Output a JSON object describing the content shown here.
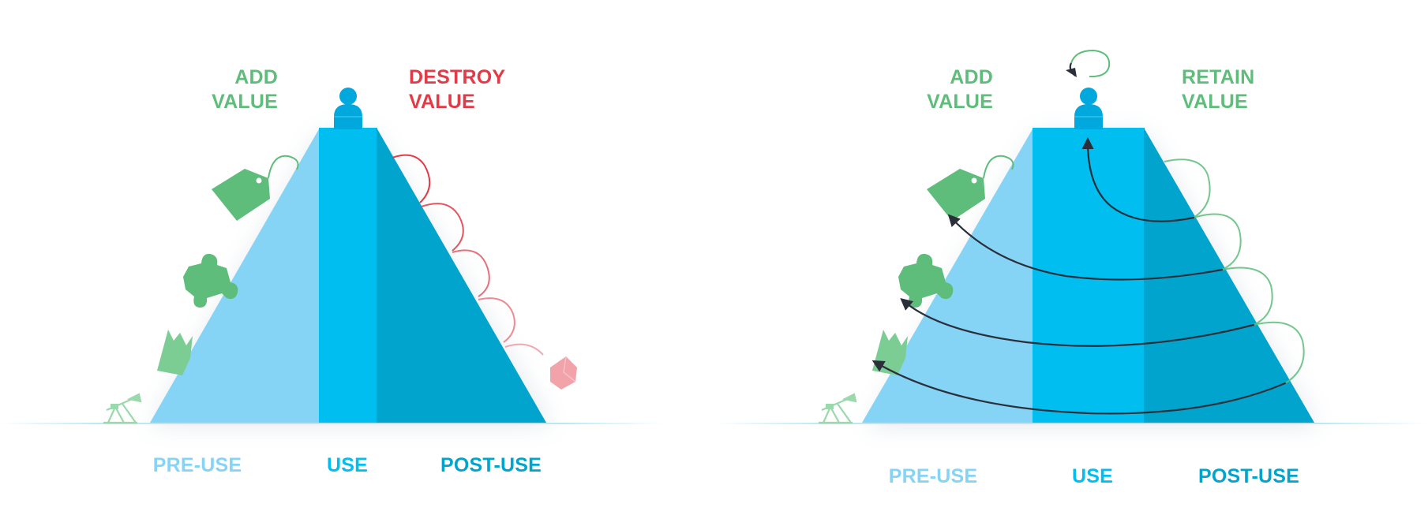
{
  "colors": {
    "pre_use": "#86d4f5",
    "use": "#00bff0",
    "post_use": "#00a4cc",
    "add_value": "#5ebd7a",
    "destroy_value": "#e23a46",
    "retain_value": "#5ebd7a",
    "arrow": "#2a2f3a",
    "ground": "#b9e9f8"
  },
  "left_diagram": {
    "add_value": [
      "ADD",
      "VALUE"
    ],
    "destroy_value": [
      "DESTROY",
      "VALUE"
    ],
    "stages": [
      "PRE-USE",
      "USE",
      "POST-USE"
    ],
    "icons": [
      "price-tag",
      "puzzle-piece",
      "factory",
      "oil-pump",
      "broken-cube"
    ]
  },
  "right_diagram": {
    "add_value": [
      "ADD",
      "VALUE"
    ],
    "retain_value": [
      "RETAIN",
      "VALUE"
    ],
    "stages": [
      "PRE-USE",
      "USE",
      "POST-USE"
    ],
    "icons": [
      "price-tag",
      "puzzle-piece",
      "factory",
      "oil-pump",
      "cycle-arrow"
    ]
  }
}
